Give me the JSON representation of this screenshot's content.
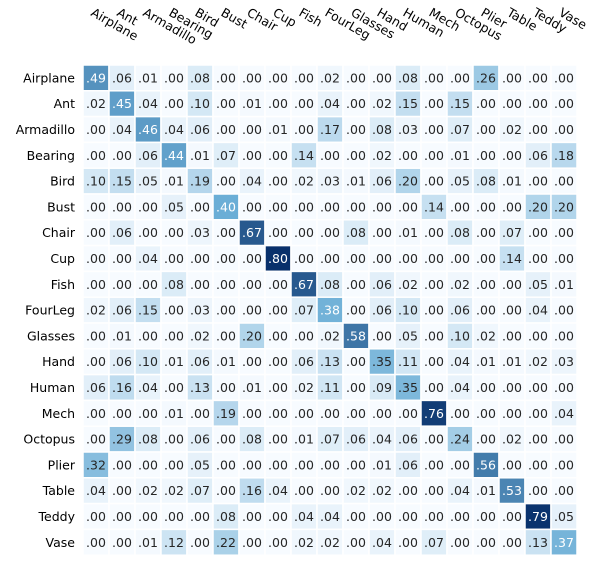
{
  "chart_data": {
    "type": "heatmap",
    "title": "",
    "xlabel": "",
    "ylabel": "",
    "x_categories": [
      "Airplane",
      "Ant",
      "Armadillo",
      "Bearing",
      "Bird",
      "Bust",
      "Chair",
      "Cup",
      "Fish",
      "FourLeg",
      "Glasses",
      "Hand",
      "Human",
      "Mech",
      "Octopus",
      "Plier",
      "Table",
      "Teddy",
      "Vase"
    ],
    "y_categories": [
      "Airplane",
      "Ant",
      "Armadillo",
      "Bearing",
      "Bird",
      "Bust",
      "Chair",
      "Cup",
      "Fish",
      "FourLeg",
      "Glasses",
      "Hand",
      "Human",
      "Mech",
      "Octopus",
      "Plier",
      "Table",
      "Teddy",
      "Vase"
    ],
    "cell_labels": [
      [
        ".49",
        ".06",
        ".01",
        ".00",
        ".08",
        ".00",
        ".00",
        ".00",
        ".00",
        ".02",
        ".00",
        ".00",
        ".08",
        ".00",
        ".00",
        ".26",
        ".00",
        ".00",
        ".00"
      ],
      [
        ".02",
        ".45",
        ".04",
        ".00",
        ".10",
        ".00",
        ".01",
        ".00",
        ".00",
        ".04",
        ".00",
        ".02",
        ".15",
        ".00",
        ".15",
        ".00",
        ".00",
        ".00",
        ".00"
      ],
      [
        ".00",
        ".04",
        ".46",
        ".04",
        ".06",
        ".00",
        ".00",
        ".01",
        ".00",
        ".17",
        ".00",
        ".08",
        ".03",
        ".00",
        ".07",
        ".00",
        ".02",
        ".00",
        ".00"
      ],
      [
        ".00",
        ".00",
        ".06",
        ".44",
        ".01",
        ".07",
        ".00",
        ".00",
        ".14",
        ".00",
        ".00",
        ".02",
        ".00",
        ".00",
        ".01",
        ".00",
        ".00",
        ".06",
        ".18"
      ],
      [
        ".10",
        ".15",
        ".05",
        ".01",
        ".19",
        ".00",
        ".04",
        ".00",
        ".02",
        ".03",
        ".01",
        ".06",
        ".20",
        ".00",
        ".05",
        ".08",
        ".01",
        ".00",
        ".00"
      ],
      [
        ".00",
        ".00",
        ".00",
        ".05",
        ".00",
        ".40",
        ".00",
        ".00",
        ".00",
        ".00",
        ".00",
        ".00",
        ".00",
        ".14",
        ".00",
        ".00",
        ".00",
        ".20",
        ".20"
      ],
      [
        ".00",
        ".06",
        ".00",
        ".00",
        ".03",
        ".00",
        ".67",
        ".00",
        ".00",
        ".00",
        ".08",
        ".00",
        ".01",
        ".00",
        ".08",
        ".00",
        ".07",
        ".00",
        ".00"
      ],
      [
        ".00",
        ".00",
        ".04",
        ".00",
        ".00",
        ".00",
        ".00",
        ".80",
        ".00",
        ".00",
        ".00",
        ".00",
        ".00",
        ".00",
        ".00",
        ".00",
        ".14",
        ".00",
        ".00"
      ],
      [
        ".00",
        ".00",
        ".00",
        ".08",
        ".00",
        ".00",
        ".00",
        ".00",
        ".67",
        ".08",
        ".00",
        ".06",
        ".02",
        ".00",
        ".02",
        ".00",
        ".00",
        ".05",
        ".01"
      ],
      [
        ".02",
        ".06",
        ".15",
        ".00",
        ".03",
        ".00",
        ".00",
        ".00",
        ".07",
        ".38",
        ".00",
        ".06",
        ".10",
        ".00",
        ".06",
        ".00",
        ".00",
        ".04",
        ".00"
      ],
      [
        ".00",
        ".01",
        ".00",
        ".00",
        ".02",
        ".00",
        ".20",
        ".00",
        ".00",
        ".02",
        ".58",
        ".00",
        ".05",
        ".00",
        ".10",
        ".02",
        ".00",
        ".00",
        ".00"
      ],
      [
        ".00",
        ".06",
        ".10",
        ".01",
        ".06",
        ".01",
        ".00",
        ".00",
        ".06",
        ".13",
        ".00",
        ".35",
        ".11",
        ".00",
        ".04",
        ".01",
        ".01",
        ".02",
        ".03"
      ],
      [
        ".06",
        ".16",
        ".04",
        ".00",
        ".13",
        ".00",
        ".01",
        ".00",
        ".02",
        ".11",
        ".00",
        ".09",
        ".35",
        ".00",
        ".04",
        ".00",
        ".00",
        ".00",
        ".00"
      ],
      [
        ".00",
        ".00",
        ".00",
        ".01",
        ".00",
        ".19",
        ".00",
        ".00",
        ".00",
        ".00",
        ".00",
        ".00",
        ".00",
        ".76",
        ".00",
        ".00",
        ".00",
        ".00",
        ".04"
      ],
      [
        ".00",
        ".29",
        ".08",
        ".00",
        ".06",
        ".00",
        ".08",
        ".00",
        ".01",
        ".07",
        ".06",
        ".04",
        ".06",
        ".00",
        ".24",
        ".00",
        ".02",
        ".00",
        ".00"
      ],
      [
        ".32",
        ".00",
        ".00",
        ".00",
        ".05",
        ".00",
        ".00",
        ".00",
        ".00",
        ".00",
        ".00",
        ".01",
        ".06",
        ".00",
        ".00",
        ".56",
        ".00",
        ".00",
        ".00"
      ],
      [
        ".04",
        ".00",
        ".02",
        ".02",
        ".07",
        ".00",
        ".16",
        ".04",
        ".00",
        ".00",
        ".02",
        ".02",
        ".00",
        ".00",
        ".04",
        ".01",
        ".53",
        ".00",
        ".00"
      ],
      [
        ".00",
        ".00",
        ".00",
        ".00",
        ".00",
        ".08",
        ".00",
        ".00",
        ".04",
        ".04",
        ".00",
        ".00",
        ".00",
        ".00",
        ".00",
        ".00",
        ".00",
        ".79",
        ".05"
      ],
      [
        ".00",
        ".00",
        ".01",
        ".12",
        ".00",
        ".22",
        ".00",
        ".00",
        ".02",
        ".02",
        ".00",
        ".04",
        ".00",
        ".07",
        ".00",
        ".00",
        ".00",
        ".13",
        ".37"
      ]
    ],
    "colormap": {
      "low": "#f7fbff",
      "mid": "#6baed6",
      "high": "#08306b"
    },
    "value_range": [
      0,
      0.8
    ],
    "grid": true,
    "colorbar": false
  }
}
